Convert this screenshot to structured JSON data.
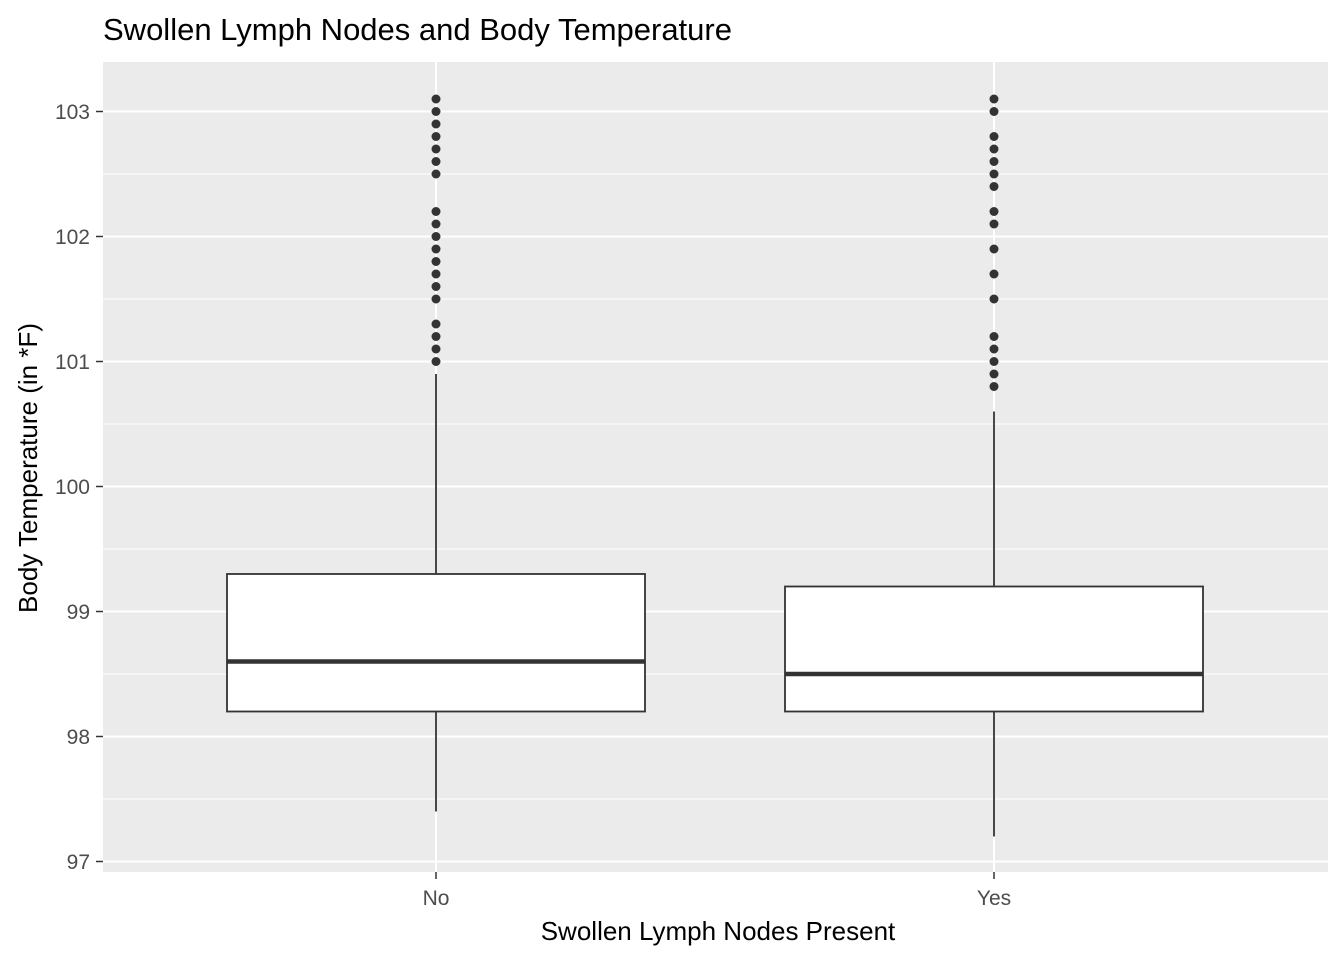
{
  "chart_data": {
    "type": "box",
    "title": "Swollen Lymph Nodes and Body Temperature",
    "xlabel": "Swollen Lymph Nodes Present",
    "ylabel": "Body Temperature (in *F)",
    "categories": [
      "No",
      "Yes"
    ],
    "ylim": [
      96.9,
      103.4
    ],
    "yticks": [
      97,
      98,
      99,
      100,
      101,
      102,
      103
    ],
    "grid": true,
    "colors": {
      "panel": "#ebebeb",
      "grid": "#ffffff",
      "box_fill": "#ffffff",
      "box_line": "#333333",
      "outlier": "#333333",
      "tick_text": "#4d4d4d"
    },
    "boxes": [
      {
        "category": "No",
        "whisker_low": 97.4,
        "q1": 98.2,
        "median": 98.6,
        "q3": 99.3,
        "whisker_high": 100.9,
        "outliers": [
          101.0,
          101.1,
          101.2,
          101.3,
          101.5,
          101.6,
          101.7,
          101.8,
          101.9,
          102.0,
          102.1,
          102.2,
          102.5,
          102.6,
          102.7,
          102.8,
          102.9,
          103.0,
          103.1
        ]
      },
      {
        "category": "Yes",
        "whisker_low": 97.2,
        "q1": 98.2,
        "median": 98.5,
        "q3": 99.2,
        "whisker_high": 100.6,
        "outliers": [
          100.8,
          100.9,
          101.0,
          101.1,
          101.2,
          101.5,
          101.7,
          101.9,
          102.1,
          102.2,
          102.4,
          102.5,
          102.6,
          102.7,
          102.8,
          103.0,
          103.1
        ]
      }
    ]
  }
}
